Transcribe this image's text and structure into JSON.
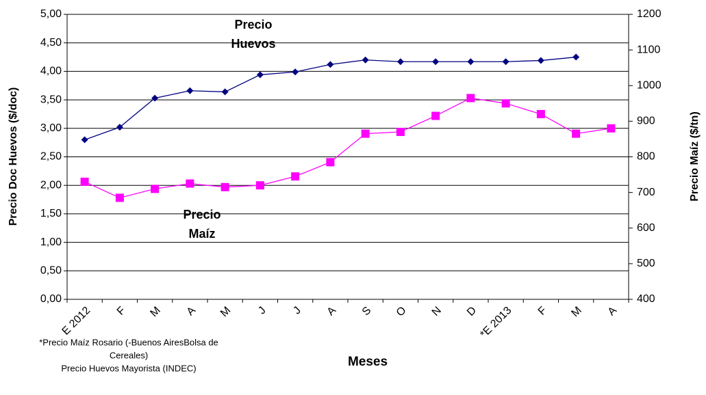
{
  "chart_data": {
    "type": "line",
    "categories": [
      "E 2012",
      "F",
      "M",
      "A",
      "M",
      "J",
      "J",
      "A",
      "S",
      "O",
      "N",
      "D",
      "*E 2013",
      "F",
      "M",
      "A"
    ],
    "series": [
      {
        "name": "Precio Huevos",
        "color": "#000080",
        "marker": "diamond",
        "values": [
          2.8,
          3.02,
          3.53,
          3.66,
          3.64,
          3.94,
          3.99,
          4.12,
          4.2,
          4.17,
          4.17,
          4.17,
          4.17,
          4.19,
          4.25,
          null
        ]
      },
      {
        "name": "Precio Maíz",
        "color": "#ff00ff",
        "marker": "square",
        "axis": "y2",
        "values": [
          730,
          685,
          710,
          725,
          715,
          720,
          745,
          785,
          865,
          870,
          915,
          965,
          950,
          920,
          865,
          880
        ]
      }
    ],
    "ylim": [
      0,
      5
    ],
    "yticks": [
      {
        "value": 0,
        "label": "0,00"
      },
      {
        "value": 0.5,
        "label": "0,50"
      },
      {
        "value": 1,
        "label": "1,00"
      },
      {
        "value": 1.5,
        "label": "1,50"
      },
      {
        "value": 2,
        "label": "2,00"
      },
      {
        "value": 2.5,
        "label": "2,50"
      },
      {
        "value": 3,
        "label": "3,00"
      },
      {
        "value": 3.5,
        "label": "3,50"
      },
      {
        "value": 4,
        "label": "4,00"
      },
      {
        "value": 4.5,
        "label": "4,50"
      },
      {
        "value": 5,
        "label": "5,00"
      }
    ],
    "y2lim": [
      400,
      1200
    ],
    "y2ticks": [
      400,
      500,
      600,
      700,
      800,
      900,
      1000,
      1100,
      1200
    ],
    "grid": true,
    "ylabel": "Precio Doc Huevos  ($/doc)",
    "y2label": "Precio Maíz ($/tn)",
    "xlabel": "Meses",
    "annotations": [
      [
        "Precio",
        "Huevos"
      ],
      [
        "Precio",
        "Maíz"
      ]
    ],
    "note": [
      "*Precio Maíz Rosario (-Buenos AiresBolsa de",
      "Cereales)",
      "Precio Huevos Mayorista (INDEC)"
    ]
  }
}
